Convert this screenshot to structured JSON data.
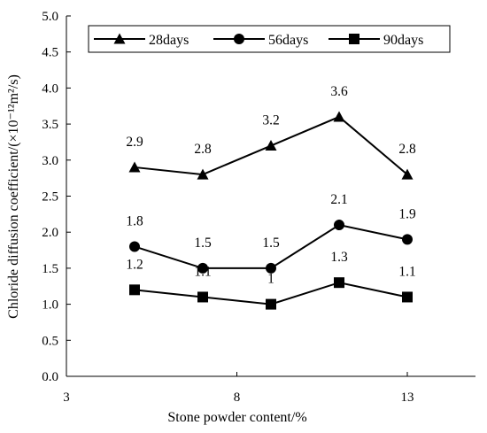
{
  "chart_data": {
    "type": "line",
    "xlabel": "Stone powder content/%",
    "ylabel": "Chloride diffusion coefficient/(×10⁻¹²m²/s)",
    "xlim": [
      3,
      15
    ],
    "ylim": [
      0,
      5
    ],
    "xticks": [
      3,
      8,
      13
    ],
    "yticks": [
      "0.0",
      "0.5",
      "1.0",
      "1.5",
      "2.0",
      "2.5",
      "3.0",
      "3.5",
      "4.0",
      "4.5",
      "5.0"
    ],
    "grid": false,
    "legend_position": "top",
    "x": [
      5,
      7,
      9,
      11,
      13
    ],
    "series": [
      {
        "name": "28days",
        "marker": "triangle",
        "values": [
          2.9,
          2.8,
          3.2,
          3.6,
          2.8
        ],
        "labels": [
          "2.9",
          "2.8",
          "3.2",
          "3.6",
          "2.8"
        ]
      },
      {
        "name": "56days",
        "marker": "circle",
        "values": [
          1.8,
          1.5,
          1.5,
          2.1,
          1.9
        ],
        "labels": [
          "1.8",
          "1.5",
          "1.5",
          "2.1",
          "1.9"
        ]
      },
      {
        "name": "90days",
        "marker": "square",
        "values": [
          1.2,
          1.1,
          1.0,
          1.3,
          1.1
        ],
        "labels": [
          "1.2",
          "1.1",
          "1",
          "1.3",
          "1.1"
        ]
      }
    ],
    "colors": {
      "line": "#000000",
      "marker": "#000000",
      "axis": "#000000",
      "legend_border": "#000000"
    }
  }
}
